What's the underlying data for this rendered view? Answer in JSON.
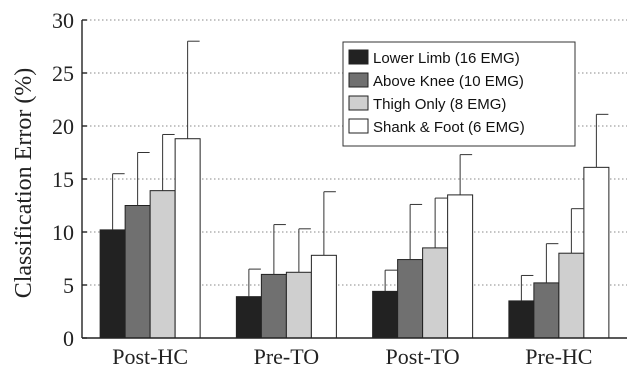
{
  "chart_data": {
    "type": "bar",
    "categories": [
      "Post-HC",
      "Pre-TO",
      "Post-TO",
      "Pre-HC"
    ],
    "ylabel": "Classification Error (%)",
    "xlabel": "",
    "ylim": [
      0,
      30
    ],
    "yticks": [
      0,
      5,
      10,
      15,
      20,
      25,
      30
    ],
    "grid": true,
    "legend_position": "top-right",
    "series": [
      {
        "name": "Lower Limb (16 EMG)",
        "color": "#222222",
        "values": [
          10.2,
          3.9,
          4.4,
          3.5
        ],
        "errors": [
          5.3,
          2.6,
          2.0,
          2.4
        ]
      },
      {
        "name": "Above Knee (10 EMG)",
        "color": "#707070",
        "values": [
          12.5,
          6.0,
          7.4,
          5.2
        ],
        "errors": [
          5.0,
          4.7,
          5.2,
          3.7
        ]
      },
      {
        "name": "Thigh Only (8 EMG)",
        "color": "#cfcfcf",
        "values": [
          13.9,
          6.2,
          8.5,
          8.0
        ],
        "errors": [
          5.3,
          4.1,
          4.7,
          4.2
        ]
      },
      {
        "name": "Shank & Foot (6 EMG)",
        "color": "#ffffff",
        "values": [
          18.8,
          7.8,
          13.5,
          16.1
        ],
        "errors": [
          9.2,
          6.0,
          3.8,
          5.0
        ]
      }
    ]
  }
}
